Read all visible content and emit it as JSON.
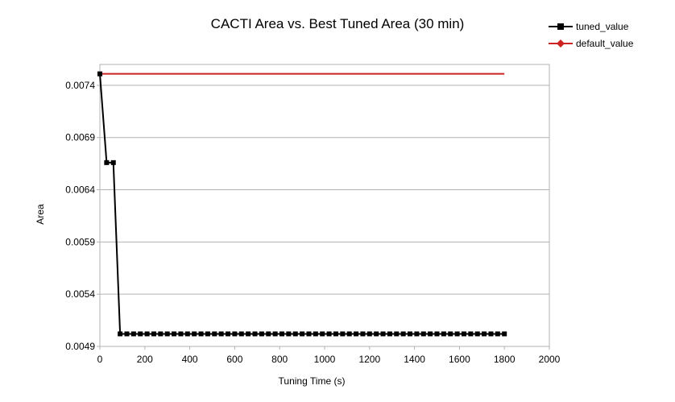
{
  "chart_data": {
    "type": "line",
    "title": "CACTI Area vs. Best Tuned Area (30 min)",
    "xlabel": "Tuning Time (s)",
    "ylabel": "Area",
    "xlim": [
      0,
      2000
    ],
    "ylim": [
      0.0049,
      0.0076
    ],
    "x_ticks": [
      "0",
      "200",
      "400",
      "600",
      "800",
      "1000",
      "1200",
      "1400",
      "1600",
      "1800",
      "2000"
    ],
    "y_ticks": [
      "0.0049",
      "0.0054",
      "0.0059",
      "0.0064",
      "0.0069",
      "0.0074"
    ],
    "y_tick_values": [
      0.0049,
      0.0054,
      0.0059,
      0.0064,
      0.0069,
      0.0074
    ],
    "x_tick_values": [
      0,
      200,
      400,
      600,
      800,
      1000,
      1200,
      1400,
      1600,
      1800,
      2000
    ],
    "grid": "horizontal",
    "legend_position": "top-right",
    "series": [
      {
        "name": "tuned_value",
        "color": "#000000",
        "marker": "square",
        "points": [
          [
            0,
            0.00751
          ],
          [
            30,
            0.00666
          ],
          [
            60,
            0.00666
          ],
          [
            90,
            0.00502
          ],
          [
            120,
            0.00502
          ],
          [
            150,
            0.00502
          ],
          [
            180,
            0.00502
          ],
          [
            210,
            0.00502
          ],
          [
            240,
            0.00502
          ],
          [
            270,
            0.00502
          ],
          [
            300,
            0.00502
          ],
          [
            330,
            0.00502
          ],
          [
            360,
            0.00502
          ],
          [
            390,
            0.00502
          ],
          [
            420,
            0.00502
          ],
          [
            450,
            0.00502
          ],
          [
            480,
            0.00502
          ],
          [
            510,
            0.00502
          ],
          [
            540,
            0.00502
          ],
          [
            570,
            0.00502
          ],
          [
            600,
            0.00502
          ],
          [
            630,
            0.00502
          ],
          [
            660,
            0.00502
          ],
          [
            690,
            0.00502
          ],
          [
            720,
            0.00502
          ],
          [
            750,
            0.00502
          ],
          [
            780,
            0.00502
          ],
          [
            810,
            0.00502
          ],
          [
            840,
            0.00502
          ],
          [
            870,
            0.00502
          ],
          [
            900,
            0.00502
          ],
          [
            930,
            0.00502
          ],
          [
            960,
            0.00502
          ],
          [
            990,
            0.00502
          ],
          [
            1020,
            0.00502
          ],
          [
            1050,
            0.00502
          ],
          [
            1080,
            0.00502
          ],
          [
            1110,
            0.00502
          ],
          [
            1140,
            0.00502
          ],
          [
            1170,
            0.00502
          ],
          [
            1200,
            0.00502
          ],
          [
            1230,
            0.00502
          ],
          [
            1260,
            0.00502
          ],
          [
            1290,
            0.00502
          ],
          [
            1320,
            0.00502
          ],
          [
            1350,
            0.00502
          ],
          [
            1380,
            0.00502
          ],
          [
            1410,
            0.00502
          ],
          [
            1440,
            0.00502
          ],
          [
            1470,
            0.00502
          ],
          [
            1500,
            0.00502
          ],
          [
            1530,
            0.00502
          ],
          [
            1560,
            0.00502
          ],
          [
            1590,
            0.00502
          ],
          [
            1620,
            0.00502
          ],
          [
            1650,
            0.00502
          ],
          [
            1680,
            0.00502
          ],
          [
            1710,
            0.00502
          ],
          [
            1740,
            0.00502
          ],
          [
            1770,
            0.00502
          ],
          [
            1800,
            0.00502
          ]
        ]
      },
      {
        "name": "default_value",
        "color": "#cc2222",
        "marker": "diamond",
        "points": [
          [
            0,
            0.00751
          ],
          [
            1800,
            0.00751
          ]
        ]
      }
    ]
  }
}
